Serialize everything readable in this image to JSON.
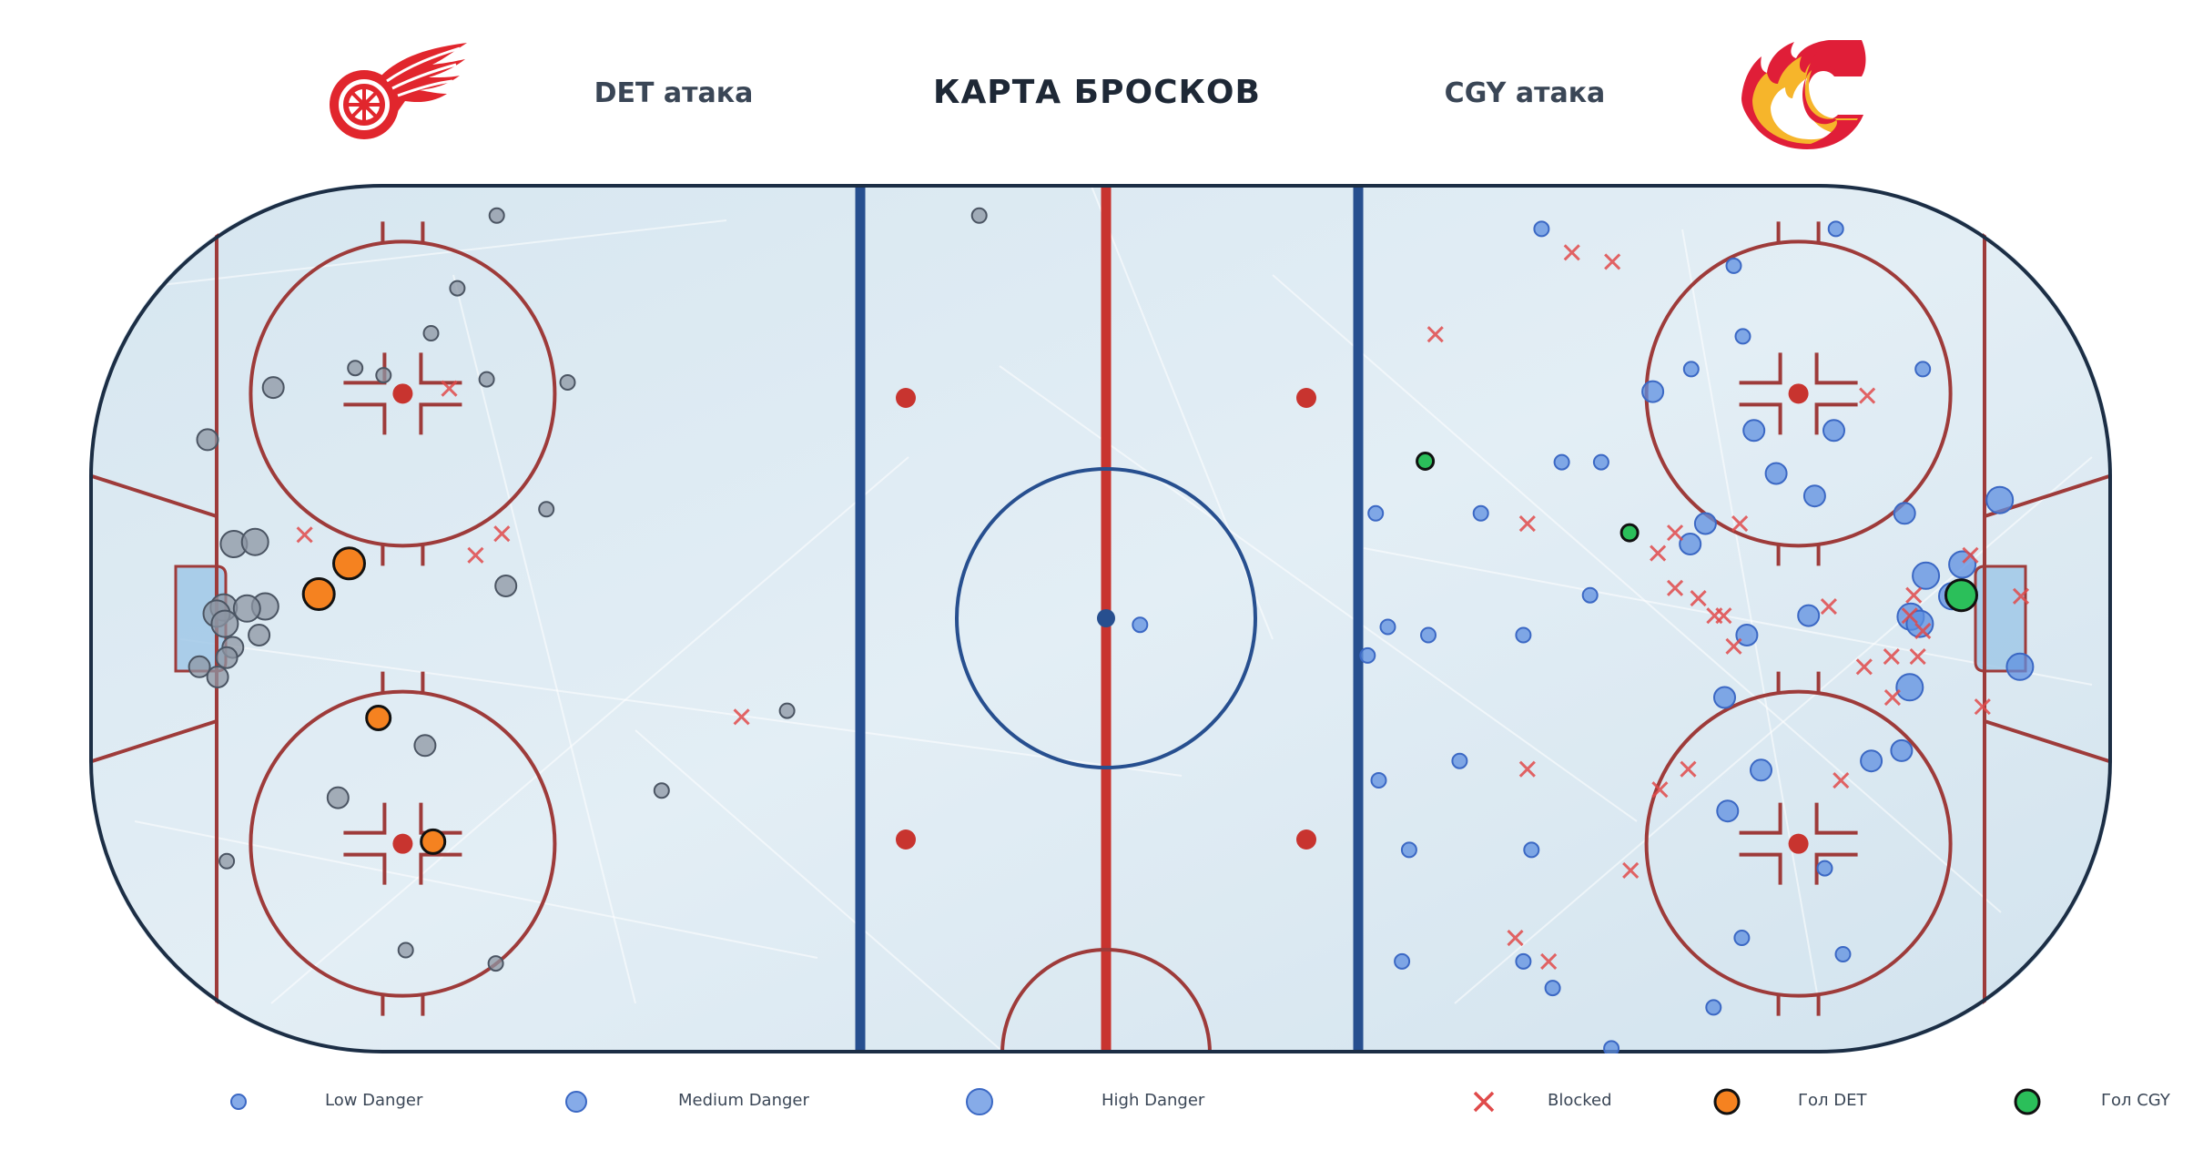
{
  "header": {
    "title": "КАРТА БРОСКОВ",
    "left_team_label": "DET атака",
    "right_team_label": "CGY атака"
  },
  "logos": {
    "left": {
      "icon": "red-wings-logo-icon",
      "color": "#e1262d"
    },
    "right": {
      "icon": "flames-logo-icon",
      "colors": [
        "#e01e38",
        "#f6b52b",
        "#ffffff"
      ]
    }
  },
  "colors": {
    "ice": "#dbe9f1",
    "red_line": "#c8342f",
    "blue_line": "#274f8f",
    "faceoff_red": "#9e3b3a",
    "det_shot": "#8c95a3",
    "cgy_shot": "#5e8fe0",
    "blocked": "#e04a4a",
    "goal_det": "#f58220",
    "goal_cgy": "#2bbf5a"
  },
  "chart_data": {
    "type": "scatter",
    "title": "КАРТА БРОСКОВ",
    "x_range": [
      -100,
      100
    ],
    "y_range": [
      -42.5,
      42.5
    ],
    "legend_position": "bottom",
    "legend": [
      {
        "key": "low",
        "label": "Low Danger"
      },
      {
        "key": "medium",
        "label": "Medium Danger"
      },
      {
        "key": "high",
        "label": "High Danger"
      },
      {
        "key": "blocked",
        "label": "Blocked"
      },
      {
        "key": "goal_det",
        "label": "Гол DET"
      },
      {
        "key": "goal_cgy",
        "label": "Гол CGY"
      }
    ],
    "det_shots": [
      {
        "x": -59.7,
        "y": 39.4,
        "danger": "low"
      },
      {
        "x": -81.8,
        "y": 22.6,
        "danger": "medium"
      },
      {
        "x": -73.7,
        "y": 24.5,
        "danger": "low"
      },
      {
        "x": -63.6,
        "y": 32.3,
        "danger": "low"
      },
      {
        "x": -66.2,
        "y": 27.9,
        "danger": "low"
      },
      {
        "x": -60.7,
        "y": 23.4,
        "danger": "low"
      },
      {
        "x": -70.9,
        "y": 23.8,
        "danger": "low"
      },
      {
        "x": -88.3,
        "y": 17.5,
        "danger": "medium"
      },
      {
        "x": -52.7,
        "y": 23.1,
        "danger": "low"
      },
      {
        "x": -54.8,
        "y": 10.7,
        "danger": "low"
      },
      {
        "x": -85.7,
        "y": 7.3,
        "danger": "high"
      },
      {
        "x": -83.6,
        "y": 7.5,
        "danger": "high"
      },
      {
        "x": -58.8,
        "y": 3.2,
        "danger": "medium"
      },
      {
        "x": -86.7,
        "y": 1.1,
        "danger": "high"
      },
      {
        "x": -82.6,
        "y": 1.2,
        "danger": "high"
      },
      {
        "x": -84.4,
        "y": 1.0,
        "danger": "high"
      },
      {
        "x": -87.4,
        "y": 0.5,
        "danger": "high"
      },
      {
        "x": -86.6,
        "y": -0.5,
        "danger": "high"
      },
      {
        "x": -83.2,
        "y": -1.6,
        "danger": "medium"
      },
      {
        "x": -85.8,
        "y": -2.8,
        "danger": "medium"
      },
      {
        "x": -86.4,
        "y": -3.8,
        "danger": "medium"
      },
      {
        "x": -89.1,
        "y": -4.7,
        "danger": "medium"
      },
      {
        "x": -87.3,
        "y": -5.7,
        "danger": "medium"
      },
      {
        "x": -66.8,
        "y": -12.4,
        "danger": "medium"
      },
      {
        "x": -75.4,
        "y": -17.5,
        "danger": "medium"
      },
      {
        "x": -86.4,
        "y": -23.7,
        "danger": "low"
      },
      {
        "x": -68.7,
        "y": -32.4,
        "danger": "low"
      },
      {
        "x": -59.8,
        "y": -33.7,
        "danger": "low"
      },
      {
        "x": -43.4,
        "y": -16.8,
        "danger": "low"
      },
      {
        "x": -31.0,
        "y": -9.0,
        "danger": "low"
      },
      {
        "x": -12.0,
        "y": 39.4,
        "danger": "low"
      }
    ],
    "cgy_shots": [
      {
        "x": 43.6,
        "y": 38.1,
        "danger": "low"
      },
      {
        "x": 72.7,
        "y": 38.1,
        "danger": "low"
      },
      {
        "x": 62.6,
        "y": 34.5,
        "danger": "low"
      },
      {
        "x": 63.5,
        "y": 27.6,
        "danger": "low"
      },
      {
        "x": 58.4,
        "y": 24.4,
        "danger": "low"
      },
      {
        "x": 81.3,
        "y": 24.4,
        "danger": "low"
      },
      {
        "x": 54.6,
        "y": 22.2,
        "danger": "medium"
      },
      {
        "x": 64.6,
        "y": 18.4,
        "danger": "medium"
      },
      {
        "x": 72.5,
        "y": 18.4,
        "danger": "medium"
      },
      {
        "x": 45.6,
        "y": 15.3,
        "danger": "low"
      },
      {
        "x": 49.5,
        "y": 15.3,
        "danger": "low"
      },
      {
        "x": 66.8,
        "y": 14.2,
        "danger": "medium"
      },
      {
        "x": 70.6,
        "y": 12.0,
        "danger": "medium"
      },
      {
        "x": 27.2,
        "y": 10.3,
        "danger": "low"
      },
      {
        "x": 37.6,
        "y": 10.3,
        "danger": "low"
      },
      {
        "x": 79.5,
        "y": 10.3,
        "danger": "medium"
      },
      {
        "x": 88.9,
        "y": 11.6,
        "danger": "high"
      },
      {
        "x": 59.8,
        "y": 9.3,
        "danger": "medium"
      },
      {
        "x": 58.3,
        "y": 7.3,
        "danger": "medium"
      },
      {
        "x": 85.2,
        "y": 5.3,
        "danger": "high"
      },
      {
        "x": 81.6,
        "y": 4.2,
        "danger": "high"
      },
      {
        "x": 48.4,
        "y": 2.3,
        "danger": "low"
      },
      {
        "x": 84.2,
        "y": 2.2,
        "danger": "high"
      },
      {
        "x": 70.0,
        "y": 0.3,
        "danger": "medium"
      },
      {
        "x": 80.1,
        "y": 0.2,
        "danger": "high"
      },
      {
        "x": 81.0,
        "y": -0.5,
        "danger": "high"
      },
      {
        "x": 28.4,
        "y": -0.8,
        "danger": "low"
      },
      {
        "x": 32.4,
        "y": -1.6,
        "danger": "low"
      },
      {
        "x": 41.8,
        "y": -1.6,
        "danger": "low"
      },
      {
        "x": 63.9,
        "y": -1.6,
        "danger": "medium"
      },
      {
        "x": 26.4,
        "y": -3.6,
        "danger": "low"
      },
      {
        "x": 90.9,
        "y": -4.7,
        "danger": "high"
      },
      {
        "x": 80.0,
        "y": -6.7,
        "danger": "high"
      },
      {
        "x": 61.7,
        "y": -7.7,
        "danger": "medium"
      },
      {
        "x": 79.2,
        "y": -12.9,
        "danger": "medium"
      },
      {
        "x": 76.2,
        "y": -13.9,
        "danger": "medium"
      },
      {
        "x": 35.5,
        "y": -13.9,
        "danger": "low"
      },
      {
        "x": 65.3,
        "y": -14.8,
        "danger": "medium"
      },
      {
        "x": 27.5,
        "y": -15.8,
        "danger": "low"
      },
      {
        "x": 62.0,
        "y": -18.8,
        "danger": "medium"
      },
      {
        "x": 30.5,
        "y": -22.6,
        "danger": "low"
      },
      {
        "x": 42.6,
        "y": -22.6,
        "danger": "low"
      },
      {
        "x": 71.6,
        "y": -24.4,
        "danger": "low"
      },
      {
        "x": 63.4,
        "y": -31.2,
        "danger": "low"
      },
      {
        "x": 73.4,
        "y": -32.8,
        "danger": "low"
      },
      {
        "x": 29.8,
        "y": -33.5,
        "danger": "low"
      },
      {
        "x": 41.8,
        "y": -33.5,
        "danger": "low"
      },
      {
        "x": 44.7,
        "y": -36.1,
        "danger": "low"
      },
      {
        "x": 60.6,
        "y": -38.0,
        "danger": "low"
      },
      {
        "x": 50.5,
        "y": -42.0,
        "danger": "low"
      },
      {
        "x": 3.9,
        "y": -0.6,
        "danger": "low"
      }
    ],
    "blocked": [
      {
        "x": 46.6,
        "y": 35.8
      },
      {
        "x": 50.6,
        "y": 34.9
      },
      {
        "x": 33.1,
        "y": 27.8
      },
      {
        "x": 75.8,
        "y": 21.8
      },
      {
        "x": -64.4,
        "y": 22.5
      },
      {
        "x": 42.2,
        "y": 9.3
      },
      {
        "x": 63.2,
        "y": 9.3
      },
      {
        "x": 56.8,
        "y": 8.4
      },
      {
        "x": -78.7,
        "y": 8.2
      },
      {
        "x": -59.2,
        "y": 8.3
      },
      {
        "x": -61.8,
        "y": 6.2
      },
      {
        "x": 55.1,
        "y": 6.4
      },
      {
        "x": 86.0,
        "y": 6.2
      },
      {
        "x": 56.8,
        "y": 3.0
      },
      {
        "x": 59.1,
        "y": 2.0
      },
      {
        "x": 80.4,
        "y": 2.3
      },
      {
        "x": 91.0,
        "y": 2.2
      },
      {
        "x": 60.7,
        "y": 0.3
      },
      {
        "x": 61.6,
        "y": 0.3
      },
      {
        "x": 72.0,
        "y": 1.2
      },
      {
        "x": 80.0,
        "y": 0.3
      },
      {
        "x": 81.3,
        "y": -1.2
      },
      {
        "x": 62.6,
        "y": -2.7
      },
      {
        "x": 80.8,
        "y": -3.7
      },
      {
        "x": 78.2,
        "y": -3.7
      },
      {
        "x": 75.5,
        "y": -4.7
      },
      {
        "x": 78.3,
        "y": -7.7
      },
      {
        "x": 87.2,
        "y": -8.6
      },
      {
        "x": -35.5,
        "y": -9.6
      },
      {
        "x": 42.2,
        "y": -14.7
      },
      {
        "x": 58.1,
        "y": -14.7
      },
      {
        "x": 55.3,
        "y": -16.7
      },
      {
        "x": 73.2,
        "y": -15.8
      },
      {
        "x": 52.4,
        "y": -24.6
      },
      {
        "x": 41.0,
        "y": -31.2
      },
      {
        "x": 44.3,
        "y": -33.5
      }
    ],
    "goals_det": [
      {
        "x": -74.3,
        "y": 5.4
      },
      {
        "x": -77.3,
        "y": 2.4
      },
      {
        "x": -71.4,
        "y": -9.7
      },
      {
        "x": -66.0,
        "y": -21.8
      }
    ],
    "goals_cgy": [
      {
        "x": 32.1,
        "y": 15.4
      },
      {
        "x": 52.3,
        "y": 8.4
      },
      {
        "x": 85.1,
        "y": 2.3
      }
    ]
  }
}
